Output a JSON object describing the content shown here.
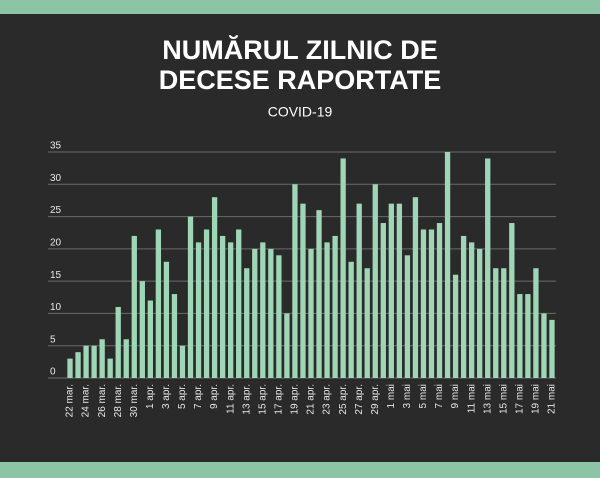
{
  "chart_data": {
    "type": "bar",
    "title": [
      "NUMĂRUL ZILNIC DE",
      "DECESE RAPORTATE"
    ],
    "subtitle": "COVID-19",
    "categories": [
      "22 mar.",
      null,
      "24 mar.",
      null,
      "26 mar.",
      null,
      "28 mar.",
      null,
      "30 mar.",
      null,
      "1 apr.",
      null,
      "3 apr.",
      null,
      "5 apr.",
      null,
      "7 apr.",
      null,
      "9 apr.",
      null,
      "11 apr.",
      null,
      "13 apr.",
      null,
      "15 apr.",
      null,
      "17 apr.",
      null,
      "19 apr.",
      null,
      "21 apr.",
      null,
      "23 apr.",
      null,
      "25 apr.",
      null,
      "27 apr.",
      null,
      "29 apr.",
      null,
      "1 mai",
      null,
      "3 mai",
      null,
      "5 mai",
      null,
      "7 mai",
      null,
      "9 mai",
      null,
      "11 mai",
      null,
      "13 mai",
      null,
      "15 mai",
      null,
      "17 mai",
      null,
      "19 mai",
      null,
      "21 mai"
    ],
    "values": [
      3,
      4,
      5,
      5,
      6,
      3,
      11,
      6,
      22,
      15,
      12,
      23,
      18,
      13,
      5,
      25,
      21,
      23,
      28,
      22,
      21,
      23,
      17,
      20,
      21,
      20,
      19,
      10,
      30,
      27,
      20,
      26,
      21,
      22,
      34,
      18,
      27,
      17,
      30,
      24,
      27,
      27,
      19,
      28,
      23,
      23,
      24,
      35,
      16,
      22,
      21,
      20,
      34,
      17,
      17,
      24,
      13,
      13,
      17,
      10,
      9
    ],
    "color": "#9fd6b6",
    "ylim": [
      0,
      35
    ],
    "yticks": [
      0,
      5,
      10,
      15,
      20,
      25,
      30,
      35
    ],
    "grid": true
  }
}
